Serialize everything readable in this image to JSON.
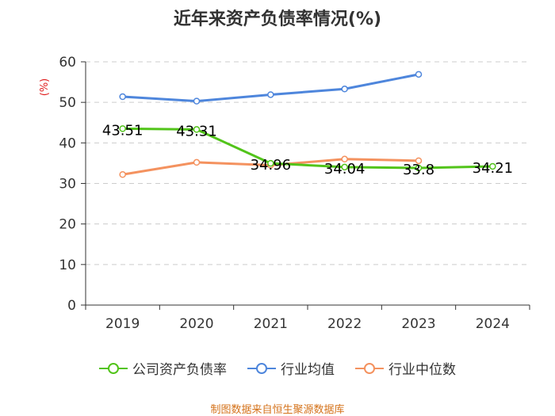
{
  "chart_data": {
    "type": "line",
    "title": "近年来资产负债率情况(%)",
    "ylabel": "(%)",
    "xlabel": "",
    "categories": [
      "2019",
      "2020",
      "2021",
      "2022",
      "2023",
      "2024"
    ],
    "ylim": [
      0,
      60
    ],
    "yticks": [
      0,
      10,
      20,
      30,
      40,
      50,
      60
    ],
    "grid": true,
    "legend_position": "bottom",
    "series": [
      {
        "name": "公司资产负债率",
        "color": "#52c41a",
        "values": [
          43.51,
          43.31,
          34.96,
          34.04,
          33.8,
          34.21
        ],
        "labels": [
          "43.51",
          "43.31",
          "34.96",
          "34.04",
          "33.8",
          "34.21"
        ]
      },
      {
        "name": "行业均值",
        "color": "#4e86dc",
        "values": [
          51.4,
          50.3,
          51.9,
          53.3,
          56.9,
          null
        ]
      },
      {
        "name": "行业中位数",
        "color": "#f4925f",
        "values": [
          32.2,
          35.2,
          34.5,
          36.0,
          35.6,
          null
        ]
      }
    ]
  },
  "source": "制图数据来自恒生聚源数据库"
}
